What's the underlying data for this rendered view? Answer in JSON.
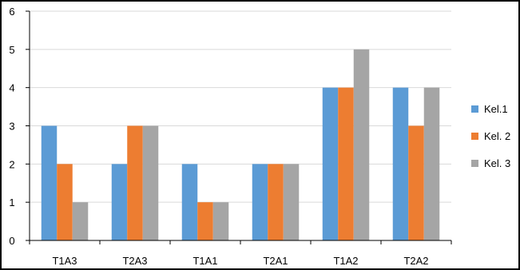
{
  "chart_data": {
    "type": "bar",
    "categories": [
      "T1A3",
      "T2A3",
      "T1A1",
      "T2A1",
      "T1A2",
      "T2A2"
    ],
    "series": [
      {
        "name": "Kel.1",
        "color": "#5b9bd5",
        "values": [
          3,
          2,
          2,
          2,
          4,
          4
        ]
      },
      {
        "name": "Kel. 2",
        "color": "#ed7d31",
        "values": [
          2,
          3,
          1,
          2,
          4,
          3
        ]
      },
      {
        "name": "Kel. 3",
        "color": "#a5a5a5",
        "values": [
          1,
          3,
          1,
          2,
          5,
          4
        ]
      }
    ],
    "ylim": [
      0,
      6
    ],
    "yticks": [
      0,
      1,
      2,
      3,
      4,
      5,
      6
    ],
    "grid": true,
    "legend_position": "right",
    "colors": {
      "gridline": "#d9d9d9",
      "axis": "#000000",
      "background": "#ffffff"
    }
  }
}
